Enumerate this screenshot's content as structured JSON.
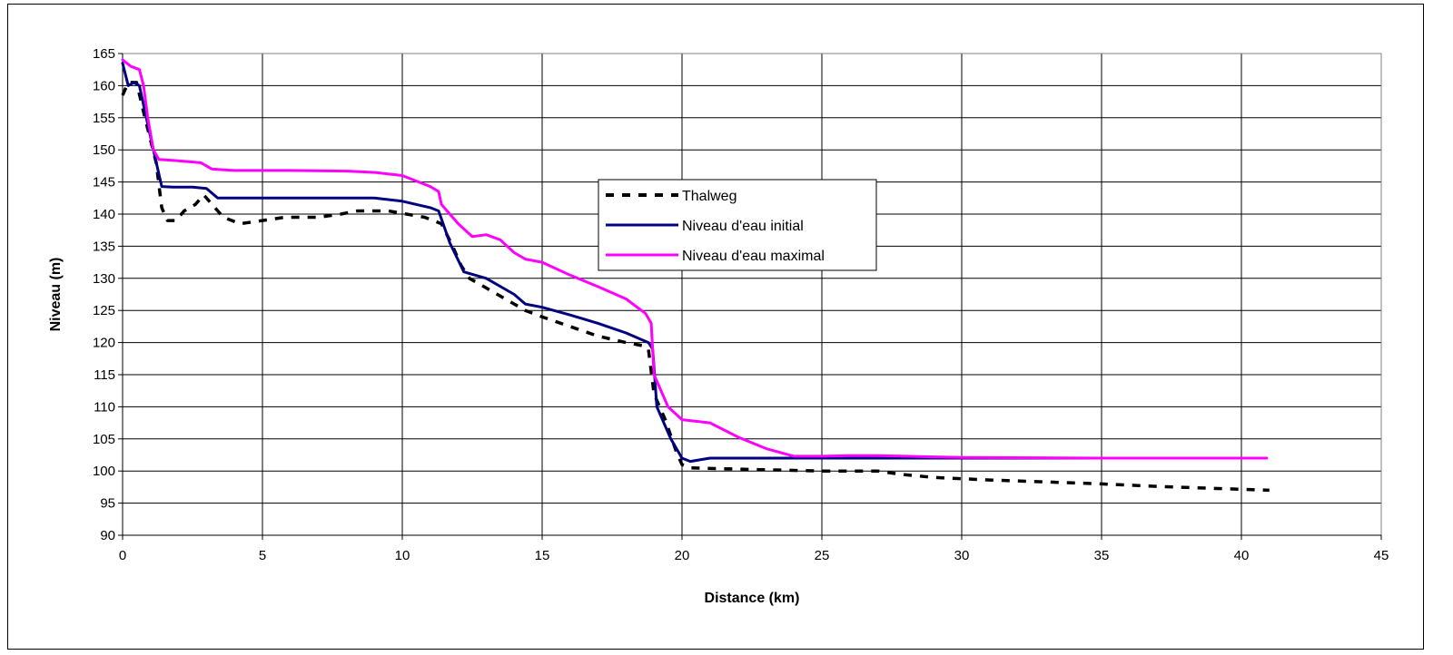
{
  "chart_data": {
    "type": "line",
    "xlabel": "Distance (km)",
    "ylabel": "Niveau (m)",
    "xlim": [
      0,
      45
    ],
    "ylim": [
      90,
      165
    ],
    "xticks": [
      0,
      5,
      10,
      15,
      20,
      25,
      30,
      35,
      40,
      45
    ],
    "yticks": [
      90,
      95,
      100,
      105,
      110,
      115,
      120,
      125,
      130,
      135,
      140,
      145,
      150,
      155,
      160,
      165
    ],
    "grid": true,
    "legend_position": "center",
    "series": [
      {
        "name": "Thalweg",
        "color": "#000000",
        "style": "dashed",
        "points": [
          [
            0,
            158.5
          ],
          [
            0.2,
            160.5
          ],
          [
            0.5,
            160.5
          ],
          [
            0.8,
            155
          ],
          [
            1.2,
            148
          ],
          [
            1.4,
            141
          ],
          [
            1.6,
            139
          ],
          [
            1.9,
            139
          ],
          [
            2.2,
            140.5
          ],
          [
            2.6,
            141.5
          ],
          [
            2.9,
            143
          ],
          [
            3.2,
            141.5
          ],
          [
            3.6,
            139.5
          ],
          [
            4.2,
            138.5
          ],
          [
            5,
            139
          ],
          [
            5.8,
            139.5
          ],
          [
            7,
            139.5
          ],
          [
            7.8,
            140
          ],
          [
            8.4,
            140.5
          ],
          [
            9.5,
            140.5
          ],
          [
            10.8,
            139.5
          ],
          [
            11.4,
            138.5
          ],
          [
            11.8,
            135
          ],
          [
            12.1,
            132
          ],
          [
            12.4,
            130
          ],
          [
            13,
            128.5
          ],
          [
            14,
            126
          ],
          [
            14.4,
            125
          ],
          [
            15,
            124
          ],
          [
            16,
            122.5
          ],
          [
            17,
            121
          ],
          [
            18,
            120
          ],
          [
            18.6,
            119.5
          ],
          [
            18.8,
            119
          ],
          [
            19,
            112
          ],
          [
            19.4,
            108
          ],
          [
            19.8,
            103
          ],
          [
            20,
            101
          ],
          [
            20.3,
            100.5
          ],
          [
            22,
            100.3
          ],
          [
            25,
            100
          ],
          [
            27,
            100
          ],
          [
            27.8,
            99.5
          ],
          [
            29,
            99
          ],
          [
            31,
            98.6
          ],
          [
            33,
            98.3
          ],
          [
            35,
            98
          ],
          [
            37,
            97.6
          ],
          [
            39,
            97.3
          ],
          [
            41,
            97
          ]
        ]
      },
      {
        "name": "Niveau d'eau initial",
        "color": "#000080",
        "style": "solid",
        "points": [
          [
            0,
            163.5
          ],
          [
            0.2,
            160
          ],
          [
            0.4,
            160.5
          ],
          [
            0.6,
            160
          ],
          [
            0.8,
            156
          ],
          [
            1.1,
            150
          ],
          [
            1.4,
            144.3
          ],
          [
            1.8,
            144.2
          ],
          [
            2.5,
            144.2
          ],
          [
            3,
            144
          ],
          [
            3.4,
            142.5
          ],
          [
            5,
            142.5
          ],
          [
            7,
            142.5
          ],
          [
            9,
            142.5
          ],
          [
            10,
            142
          ],
          [
            11,
            141
          ],
          [
            11.3,
            140.5
          ],
          [
            11.7,
            135.5
          ],
          [
            12.2,
            131
          ],
          [
            13,
            130
          ],
          [
            14,
            127.5
          ],
          [
            14.4,
            126
          ],
          [
            15,
            125.5
          ],
          [
            16,
            124.3
          ],
          [
            17,
            123
          ],
          [
            18,
            121.5
          ],
          [
            18.8,
            120
          ],
          [
            18.95,
            119
          ],
          [
            19.1,
            110
          ],
          [
            19.6,
            105
          ],
          [
            20,
            102
          ],
          [
            20.3,
            101.5
          ],
          [
            21,
            102
          ],
          [
            22,
            102
          ],
          [
            25,
            102
          ],
          [
            30,
            102
          ],
          [
            35,
            102
          ],
          [
            40.9,
            102
          ]
        ]
      },
      {
        "name": "Niveau d'eau maximal",
        "color": "#ff00ff",
        "style": "solid",
        "points": [
          [
            0,
            164
          ],
          [
            0.3,
            163
          ],
          [
            0.6,
            162.5
          ],
          [
            0.75,
            160
          ],
          [
            0.9,
            155
          ],
          [
            1.1,
            150
          ],
          [
            1.3,
            148.5
          ],
          [
            2,
            148.3
          ],
          [
            2.8,
            148
          ],
          [
            3.2,
            147
          ],
          [
            4,
            146.8
          ],
          [
            6,
            146.8
          ],
          [
            8,
            146.7
          ],
          [
            9,
            146.5
          ],
          [
            10,
            146
          ],
          [
            11,
            144.3
          ],
          [
            11.3,
            143.5
          ],
          [
            11.4,
            141.5
          ],
          [
            12,
            138.5
          ],
          [
            12.5,
            136.5
          ],
          [
            13,
            136.8
          ],
          [
            13.5,
            136
          ],
          [
            14,
            134
          ],
          [
            14.4,
            133
          ],
          [
            15,
            132.5
          ],
          [
            16,
            130.5
          ],
          [
            17,
            128.7
          ],
          [
            18,
            126.8
          ],
          [
            18.7,
            124.5
          ],
          [
            18.9,
            123
          ],
          [
            19,
            115
          ],
          [
            19.5,
            110
          ],
          [
            20,
            108
          ],
          [
            21,
            107.5
          ],
          [
            22,
            105.3
          ],
          [
            23,
            103.5
          ],
          [
            24,
            102.3
          ],
          [
            25,
            102.3
          ],
          [
            26,
            102.4
          ],
          [
            27,
            102.4
          ],
          [
            28,
            102.3
          ],
          [
            30,
            102.1
          ],
          [
            35,
            102
          ],
          [
            40.9,
            102
          ]
        ]
      }
    ]
  }
}
